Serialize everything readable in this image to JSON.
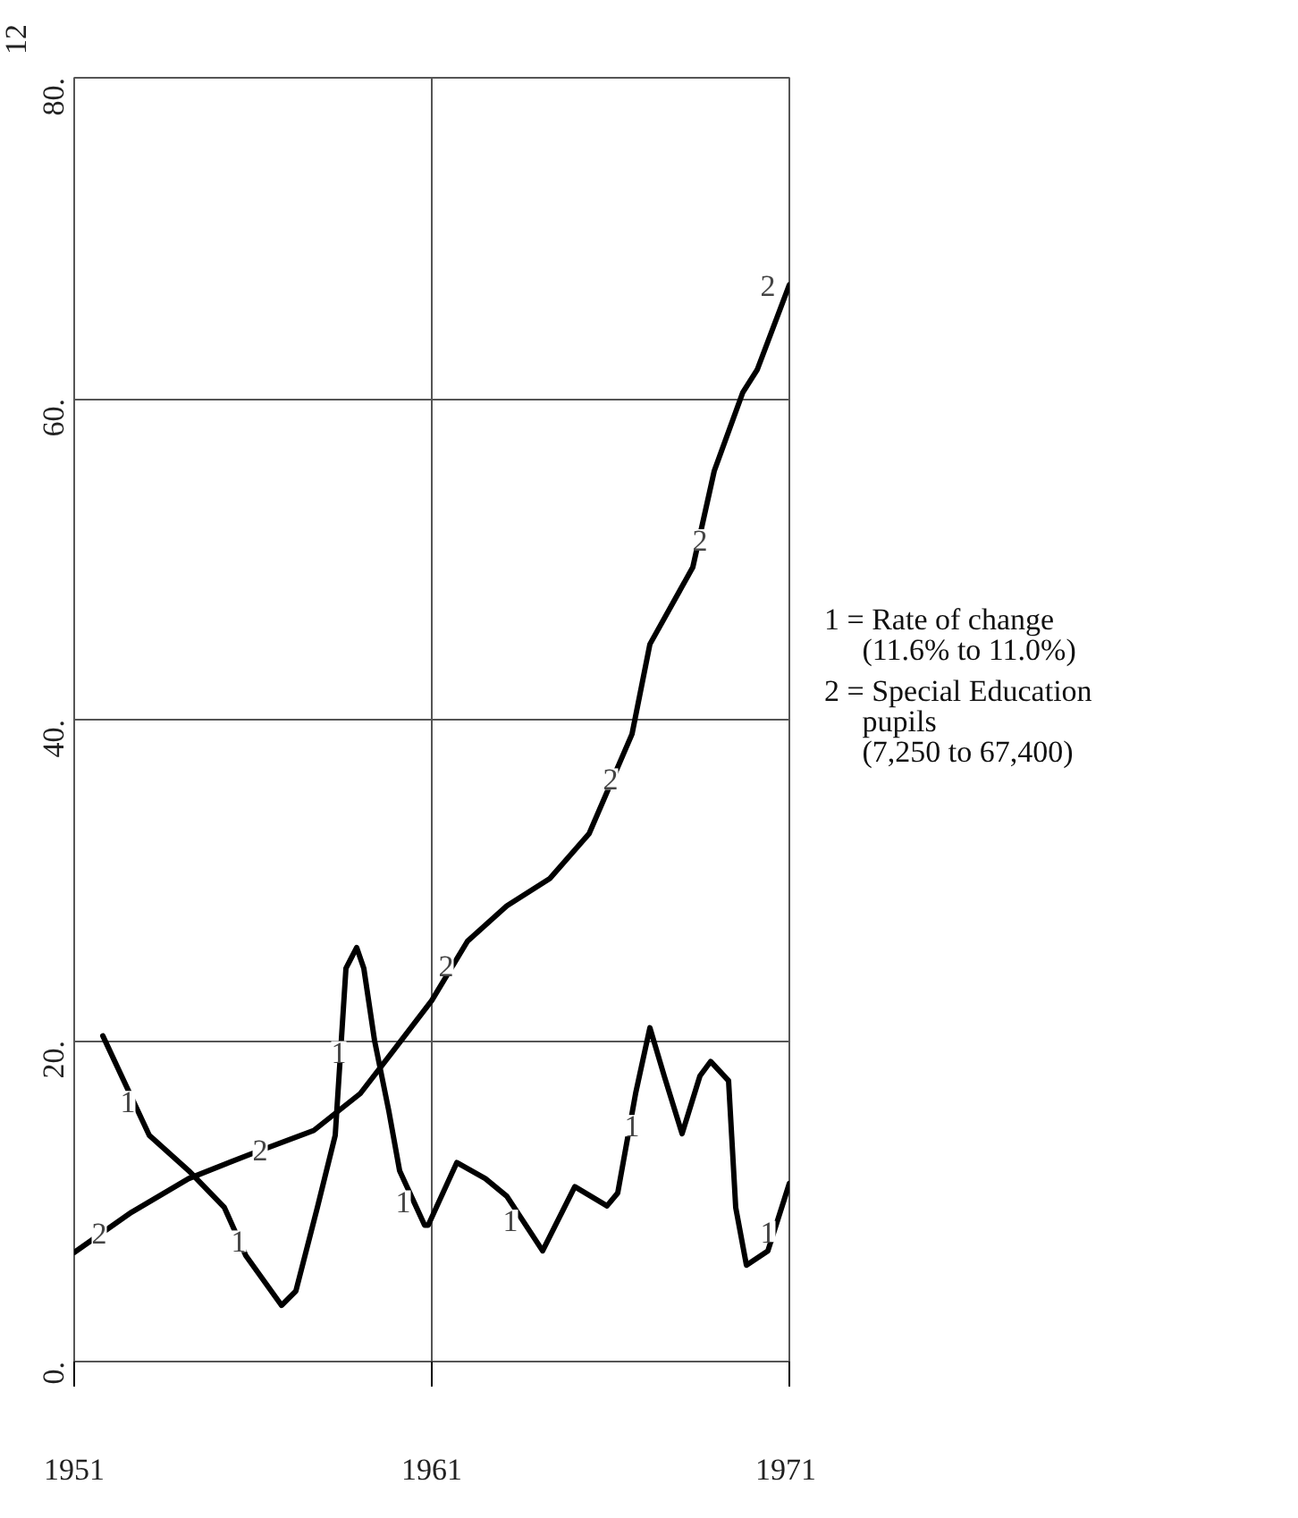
{
  "chart_data": {
    "type": "line",
    "xlim": [
      1951,
      1971
    ],
    "xticks": [
      1951,
      1961,
      1971
    ],
    "ylim": [
      0,
      80
    ],
    "yticks": [
      {
        "value": 0,
        "label": "0."
      },
      {
        "value": 20,
        "label": "20."
      },
      {
        "value": 40,
        "label": "40."
      },
      {
        "value": 60,
        "label": "60."
      },
      {
        "value": 80,
        "label": "80."
      }
    ],
    "grid": true,
    "series": [
      {
        "color": "#000000",
        "x": [
          1951.8,
          1953.1,
          1954.2,
          1955.2,
          1955.8,
          1956.8,
          1957.2,
          1957.8,
          1958.3,
          1958.6,
          1958.9,
          1959.1,
          1959.4,
          1959.8,
          1960.1,
          1960.8,
          1960.9,
          1961.7,
          1962.5,
          1963.1,
          1964.1,
          1965.0,
          1965.9,
          1966.2,
          1966.7,
          1967.1,
          1967.5,
          1968.0,
          1968.5,
          1968.8,
          1969.3,
          1969.5,
          1969.8,
          1970.4,
          1971.0
        ],
        "values": [
          20.3,
          14.1,
          11.9,
          9.6,
          6.6,
          3.5,
          4.4,
          9.6,
          14.1,
          24.5,
          25.8,
          24.5,
          20.0,
          15.6,
          11.9,
          8.5,
          8.5,
          12.4,
          11.4,
          10.3,
          6.9,
          10.9,
          9.7,
          10.5,
          16.7,
          20.8,
          17.8,
          14.2,
          17.8,
          18.7,
          17.5,
          9.6,
          6.0,
          6.9,
          11.1
        ]
      },
      {
        "color": "#000000",
        "x": [
          1951.0,
          1952.6,
          1954.2,
          1955.9,
          1957.7,
          1959.0,
          1959.9,
          1961.0,
          1962.0,
          1963.1,
          1964.3,
          1965.4,
          1966.6,
          1967.1,
          1968.3,
          1968.9,
          1969.7,
          1970.1,
          1971.0
        ],
        "values": [
          6.8,
          9.3,
          11.4,
          12.9,
          14.4,
          16.7,
          19.3,
          22.5,
          26.2,
          28.4,
          30.1,
          32.9,
          39.1,
          44.7,
          49.5,
          55.5,
          60.4,
          61.8,
          67.1
        ]
      }
    ],
    "annotations": [
      {
        "text": "1",
        "x": 1952.5,
        "y": 16.2
      },
      {
        "text": "1",
        "x": 1955.6,
        "y": 7.5
      },
      {
        "text": "1",
        "x": 1958.4,
        "y": 19.3
      },
      {
        "text": "1",
        "x": 1960.2,
        "y": 10.0
      },
      {
        "text": "1",
        "x": 1963.2,
        "y": 8.8
      },
      {
        "text": "1",
        "x": 1966.6,
        "y": 14.7
      },
      {
        "text": "1",
        "x": 1970.4,
        "y": 8.1
      },
      {
        "text": "2",
        "x": 1951.7,
        "y": 8.0
      },
      {
        "text": "2",
        "x": 1956.2,
        "y": 13.2
      },
      {
        "text": "2",
        "x": 1961.4,
        "y": 24.7
      },
      {
        "text": "2",
        "x": 1966.0,
        "y": 36.3
      },
      {
        "text": "2",
        "x": 1968.5,
        "y": 51.2
      },
      {
        "text": "2",
        "x": 1970.4,
        "y": 67.1
      },
      "12",
      "1 = Rate of change\n     (11.6% to 11.0%)",
      "2 = Special Education\n     pupils\n     (7,250 to 67,400)"
    ]
  }
}
